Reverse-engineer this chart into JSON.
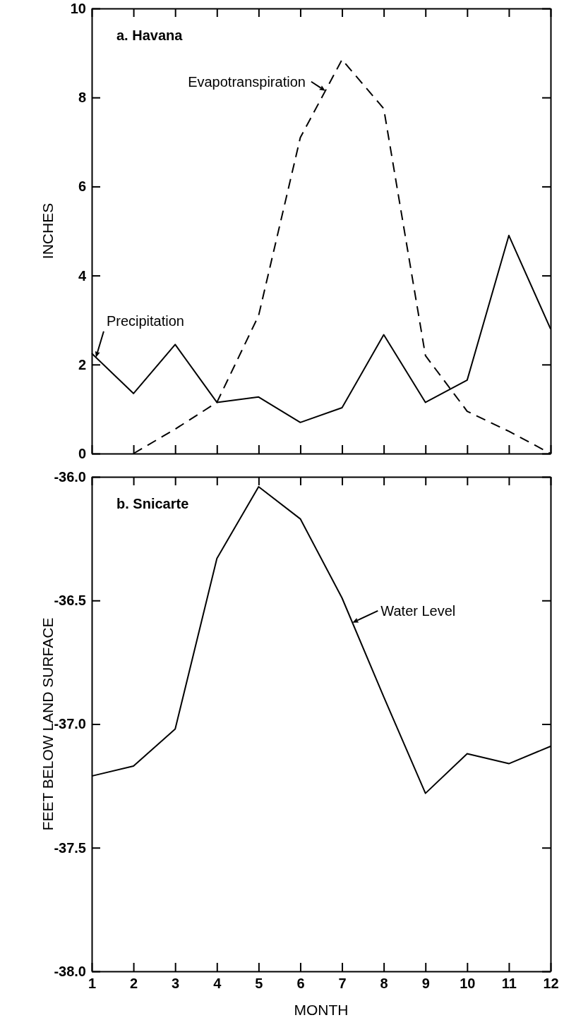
{
  "chart_data": [
    {
      "type": "line",
      "title": "a.  Havana",
      "ylabel": "INCHES",
      "x": [
        1,
        2,
        3,
        4,
        5,
        6,
        7,
        8,
        9,
        10,
        11,
        12
      ],
      "xlim": [
        1,
        12
      ],
      "xticks": [
        1,
        2,
        3,
        4,
        5,
        6,
        7,
        8,
        9,
        10,
        11,
        12
      ],
      "ylim": [
        0,
        10
      ],
      "yticks": [
        0,
        2,
        4,
        6,
        8,
        10
      ],
      "tick_labels": "y",
      "grid": false,
      "series": [
        {
          "name": "Evapotranspiration",
          "color": "#000000",
          "line_style": "dashed",
          "x": [
            2,
            3,
            4,
            5,
            6,
            7,
            8,
            9,
            10,
            11,
            12
          ],
          "values": [
            0,
            0.55,
            1.15,
            3.1,
            7.1,
            8.85,
            7.75,
            2.2,
            0.95,
            0.5,
            0
          ]
        },
        {
          "name": "Precipitation",
          "color": "#000000",
          "line_style": "solid",
          "values": [
            2.25,
            1.35,
            2.45,
            1.15,
            1.27,
            0.7,
            1.03,
            2.67,
            1.15,
            1.65,
            4.9,
            2.8
          ]
        }
      ]
    },
    {
      "type": "line",
      "title": "b.  Snicarte",
      "xlabel": "MONTH",
      "ylabel": "FEET BELOW LAND SURFACE",
      "x": [
        1,
        2,
        3,
        4,
        5,
        6,
        7,
        8,
        9,
        10,
        11,
        12
      ],
      "xlim": [
        1,
        12
      ],
      "xticks": [
        1,
        2,
        3,
        4,
        5,
        6,
        7,
        8,
        9,
        10,
        11,
        12
      ],
      "ylim": [
        -38,
        -36
      ],
      "yticks": [
        {
          "value": -38,
          "label": "-38.0"
        },
        {
          "value": -37.5,
          "label": "-37.5"
        },
        {
          "value": -37,
          "label": "-37.0"
        },
        {
          "value": -36.5,
          "label": "-36.5"
        },
        {
          "value": -36,
          "label": "-36.0"
        }
      ],
      "grid": false,
      "series": [
        {
          "name": "Water Level",
          "color": "#000000",
          "line_style": "solid",
          "values": [
            -37.21,
            -37.17,
            -37.02,
            -36.33,
            -36.04,
            -36.17,
            -36.49,
            -36.89,
            -37.28,
            -37.12,
            -37.16,
            -37.09
          ]
        }
      ]
    }
  ]
}
